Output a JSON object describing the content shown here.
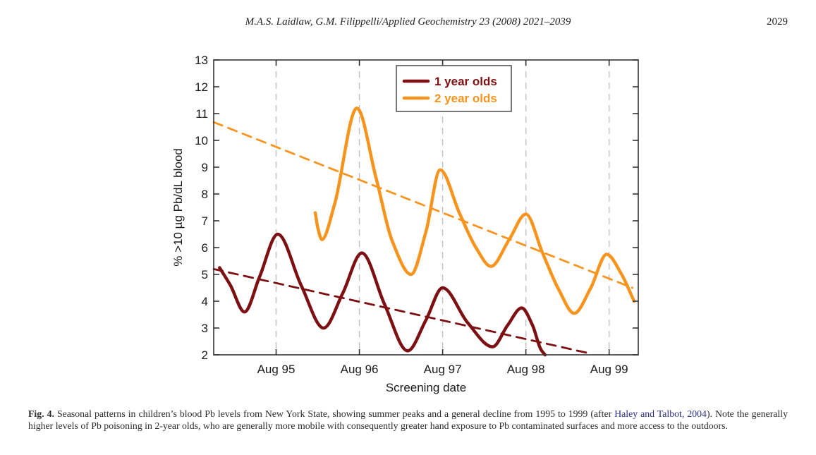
{
  "header": {
    "citation": "M.A.S. Laidlaw, G.M. Filippelli/Applied Geochemistry 23 (2008) 2021–2039",
    "page_number": "2029"
  },
  "colors": {
    "dark_red": "#7D1012",
    "orange": "#F7941E",
    "grid": "#C0C0C0",
    "axis": "#333333",
    "link_blue": "#2B3087"
  },
  "chart_data": {
    "type": "line",
    "title": "",
    "xlabel": "Screening date",
    "ylabel": "% >10 µg Pb/dL blood",
    "xlim": [
      1994.85,
      1999.95
    ],
    "ylim": [
      2,
      13
    ],
    "grid": "vertical-dashed-at-august-ticks",
    "legend_position": "top-center",
    "yticks": [
      2,
      3,
      4,
      5,
      6,
      7,
      8,
      9,
      10,
      11,
      12,
      13
    ],
    "xticks": [
      {
        "t": 1995.6,
        "label": "Aug 95"
      },
      {
        "t": 1996.6,
        "label": "Aug 96"
      },
      {
        "t": 1997.6,
        "label": "Aug 97"
      },
      {
        "t": 1998.6,
        "label": "Aug 98"
      },
      {
        "t": 1999.6,
        "label": "Aug 99"
      }
    ],
    "series": [
      {
        "name": "1 year olds",
        "color": "#7D1012",
        "style": "solid",
        "points": [
          [
            1994.92,
            5.25
          ],
          [
            1995.05,
            4.6
          ],
          [
            1995.22,
            3.6
          ],
          [
            1995.4,
            4.9
          ],
          [
            1995.62,
            6.5
          ],
          [
            1995.9,
            4.6
          ],
          [
            1996.17,
            3.0
          ],
          [
            1996.4,
            4.3
          ],
          [
            1996.63,
            5.8
          ],
          [
            1996.9,
            3.9
          ],
          [
            1997.18,
            2.15
          ],
          [
            1997.4,
            3.3
          ],
          [
            1997.6,
            4.5
          ],
          [
            1997.9,
            3.2
          ],
          [
            1998.2,
            2.3
          ],
          [
            1998.38,
            3.1
          ],
          [
            1998.55,
            3.75
          ],
          [
            1998.68,
            3.1
          ],
          [
            1998.78,
            2.2
          ],
          [
            1998.83,
            2.0
          ]
        ]
      },
      {
        "name": "2 year olds",
        "color": "#F7941E",
        "style": "solid",
        "points": [
          [
            1996.07,
            7.3
          ],
          [
            1996.1,
            6.75
          ],
          [
            1996.15,
            6.3
          ],
          [
            1996.3,
            7.6
          ],
          [
            1996.57,
            11.2
          ],
          [
            1996.8,
            8.6
          ],
          [
            1997.0,
            6.2
          ],
          [
            1997.22,
            5.0
          ],
          [
            1997.4,
            6.6
          ],
          [
            1997.57,
            8.9
          ],
          [
            1997.8,
            7.3
          ],
          [
            1998.0,
            6.0
          ],
          [
            1998.18,
            5.3
          ],
          [
            1998.4,
            6.3
          ],
          [
            1998.6,
            7.25
          ],
          [
            1998.8,
            5.8
          ],
          [
            1999.0,
            4.4
          ],
          [
            1999.18,
            3.55
          ],
          [
            1999.38,
            4.5
          ],
          [
            1999.57,
            5.75
          ],
          [
            1999.75,
            5.0
          ],
          [
            1999.9,
            4.0
          ]
        ]
      },
      {
        "name": "1 year olds trend",
        "color": "#7D1012",
        "style": "dashed",
        "points": [
          [
            1994.85,
            5.2
          ],
          [
            1999.33,
            2.08
          ]
        ]
      },
      {
        "name": "2 year olds trend",
        "color": "#F7941E",
        "style": "dashed",
        "points": [
          [
            1994.85,
            10.68
          ],
          [
            1999.88,
            4.5
          ]
        ]
      }
    ]
  },
  "caption": {
    "label": "Fig. 4.",
    "text1": " Seasonal patterns in children’s blood Pb levels from New York State, showing summer peaks and a general decline from 1995 to 1999 (after ",
    "link1": "Haley and Talbot, 2004",
    "text2": "). Note the generally higher levels of Pb poisoning in 2-year olds, who are generally more mobile with consequently greater hand exposure to Pb contaminated surfaces and more access to the outdoors."
  }
}
